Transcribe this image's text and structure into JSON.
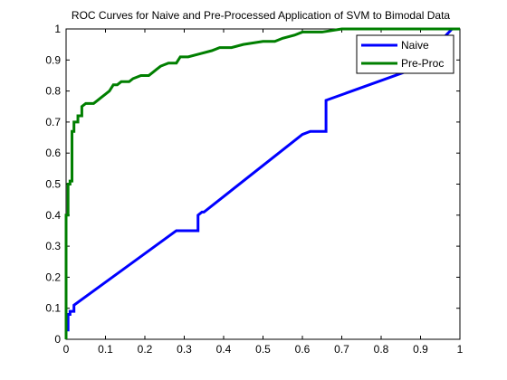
{
  "chart_data": {
    "type": "line",
    "title": "ROC Curves for Naive and Pre-Processed Application of SVM to Bimodal Data",
    "xlabel": "",
    "ylabel": "",
    "xlim": [
      0,
      1
    ],
    "ylim": [
      0,
      1
    ],
    "x_ticks": [
      "0",
      "0.1",
      "0.2",
      "0.3",
      "0.4",
      "0.5",
      "0.6",
      "0.7",
      "0.8",
      "0.9",
      "1"
    ],
    "y_ticks": [
      "0",
      "0.1",
      "0.2",
      "0.3",
      "0.4",
      "0.5",
      "0.6",
      "0.7",
      "0.8",
      "0.9",
      "1"
    ],
    "grid": false,
    "legend_position": "top-right",
    "series": [
      {
        "name": "Naive",
        "color": "#0000ff",
        "x": [
          0,
          0,
          0.005,
          0.005,
          0.01,
          0.01,
          0.02,
          0.02,
          0.28,
          0.33,
          0.335,
          0.335,
          0.345,
          0.35,
          0.6,
          0.62,
          0.66,
          0.66,
          0.88,
          0.89,
          0.98,
          1.0
        ],
        "y": [
          0,
          0.03,
          0.03,
          0.08,
          0.08,
          0.09,
          0.09,
          0.11,
          0.35,
          0.35,
          0.35,
          0.4,
          0.41,
          0.41,
          0.66,
          0.67,
          0.67,
          0.77,
          0.87,
          0.88,
          1.0,
          1.0
        ]
      },
      {
        "name": "Pre-Proc",
        "color": "#007f00",
        "x": [
          0,
          0,
          0.005,
          0.005,
          0.01,
          0.01,
          0.015,
          0.015,
          0.02,
          0.02,
          0.03,
          0.03,
          0.04,
          0.04,
          0.05,
          0.06,
          0.07,
          0.08,
          0.09,
          0.1,
          0.11,
          0.12,
          0.13,
          0.14,
          0.16,
          0.17,
          0.19,
          0.21,
          0.22,
          0.23,
          0.24,
          0.26,
          0.28,
          0.29,
          0.31,
          0.34,
          0.37,
          0.39,
          0.42,
          0.45,
          0.5,
          0.53,
          0.55,
          0.58,
          0.6,
          0.65,
          0.7,
          0.8,
          0.9,
          1.0
        ],
        "y": [
          0,
          0.4,
          0.4,
          0.5,
          0.5,
          0.51,
          0.51,
          0.67,
          0.67,
          0.7,
          0.7,
          0.72,
          0.72,
          0.75,
          0.76,
          0.76,
          0.76,
          0.77,
          0.78,
          0.79,
          0.8,
          0.82,
          0.82,
          0.83,
          0.83,
          0.84,
          0.85,
          0.85,
          0.86,
          0.87,
          0.88,
          0.89,
          0.89,
          0.91,
          0.91,
          0.92,
          0.93,
          0.94,
          0.94,
          0.95,
          0.96,
          0.96,
          0.97,
          0.98,
          0.99,
          0.99,
          1.0,
          1.0,
          1.0,
          1.0
        ]
      }
    ]
  }
}
